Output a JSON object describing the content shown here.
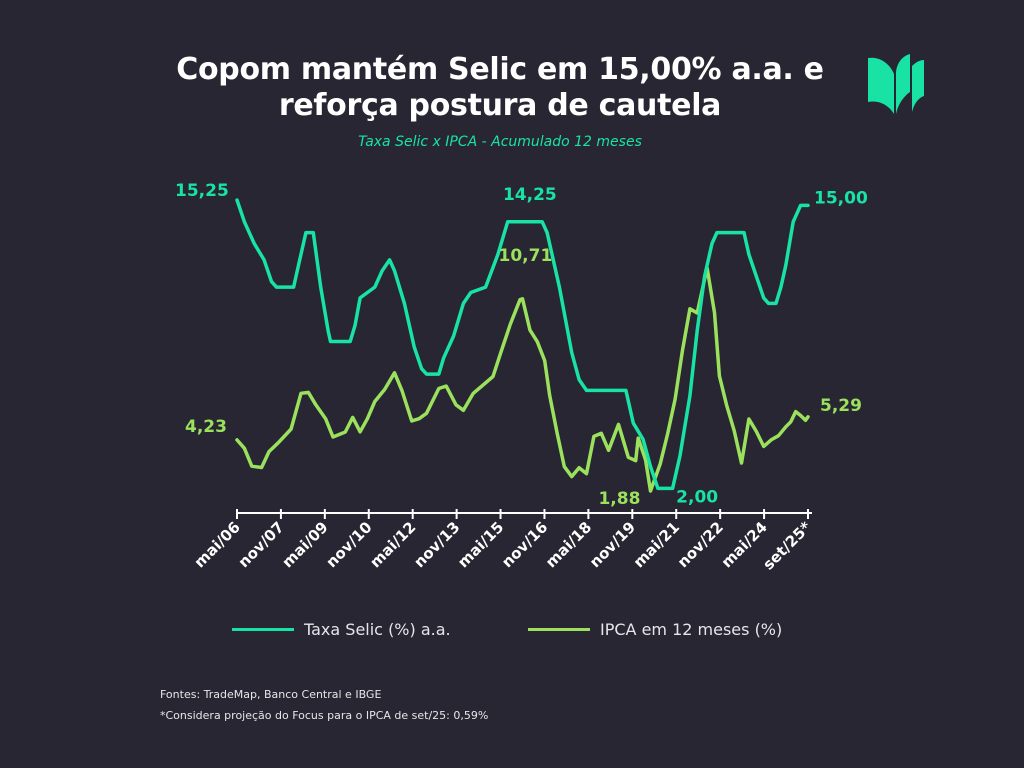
{
  "title_line1": "Copom mantém Selic em 15,00% a.a. e",
  "title_line2": "reforça postura de cautela",
  "subtitle": "Taxa Selic x IPCA - Acumulado 12 meses",
  "logo_icon": "fiscal-books-logo-icon",
  "colors": {
    "background": "#272632",
    "selic": "#19e3a4",
    "ipca": "#9be15d",
    "text": "#ffffff"
  },
  "legend": {
    "selic": "Taxa Selic (%) a.a.",
    "ipca": "IPCA em 12 meses (%)"
  },
  "sources": "Fontes: TradeMap, Banco Central e IBGE",
  "footnote": "*Considera projeção do Focus para o IPCA de set/25: 0,59%",
  "chart_data": {
    "type": "line",
    "x_ticks": [
      "mai/06",
      "nov/07",
      "mai/09",
      "nov/10",
      "mai/12",
      "nov/13",
      "mai/15",
      "nov/16",
      "mai/18",
      "nov/19",
      "mai/21",
      "nov/22",
      "mai/24",
      "set/25*"
    ],
    "x_range": [
      "2006-05",
      "2025-09"
    ],
    "y_range": [
      1.5,
      16.5
    ],
    "grid": false,
    "legend_position": "bottom",
    "series": [
      {
        "name": "Taxa Selic (%) a.a.",
        "color": "#19e3a4",
        "points": [
          [
            "2006-05",
            15.25
          ],
          [
            "2006-08",
            14.25
          ],
          [
            "2006-12",
            13.25
          ],
          [
            "2007-04",
            12.5
          ],
          [
            "2007-07",
            11.5
          ],
          [
            "2007-09",
            11.25
          ],
          [
            "2008-04",
            11.25
          ],
          [
            "2008-06",
            12.25
          ],
          [
            "2008-09",
            13.75
          ],
          [
            "2008-12",
            13.75
          ],
          [
            "2009-03",
            11.25
          ],
          [
            "2009-06",
            9.25
          ],
          [
            "2009-07",
            8.75
          ],
          [
            "2010-03",
            8.75
          ],
          [
            "2010-05",
            9.5
          ],
          [
            "2010-07",
            10.75
          ],
          [
            "2011-01",
            11.25
          ],
          [
            "2011-04",
            12.0
          ],
          [
            "2011-07",
            12.5
          ],
          [
            "2011-09",
            12.0
          ],
          [
            "2012-01",
            10.5
          ],
          [
            "2012-05",
            8.5
          ],
          [
            "2012-08",
            7.5
          ],
          [
            "2012-10",
            7.25
          ],
          [
            "2013-03",
            7.25
          ],
          [
            "2013-05",
            8.0
          ],
          [
            "2013-09",
            9.0
          ],
          [
            "2014-01",
            10.5
          ],
          [
            "2014-04",
            11.0
          ],
          [
            "2014-10",
            11.25
          ],
          [
            "2015-03",
            12.75
          ],
          [
            "2015-07",
            14.25
          ],
          [
            "2016-09",
            14.25
          ],
          [
            "2016-11",
            13.75
          ],
          [
            "2017-04",
            11.25
          ],
          [
            "2017-09",
            8.25
          ],
          [
            "2017-12",
            7.0
          ],
          [
            "2018-03",
            6.5
          ],
          [
            "2019-07",
            6.5
          ],
          [
            "2019-10",
            5.0
          ],
          [
            "2020-02",
            4.25
          ],
          [
            "2020-05",
            3.0
          ],
          [
            "2020-08",
            2.0
          ],
          [
            "2021-02",
            2.0
          ],
          [
            "2021-05",
            3.5
          ],
          [
            "2021-09",
            6.25
          ],
          [
            "2021-12",
            9.25
          ],
          [
            "2022-03",
            11.75
          ],
          [
            "2022-06",
            13.25
          ],
          [
            "2022-08",
            13.75
          ],
          [
            "2023-07",
            13.75
          ],
          [
            "2023-09",
            12.75
          ],
          [
            "2023-12",
            11.75
          ],
          [
            "2024-03",
            10.75
          ],
          [
            "2024-05",
            10.5
          ],
          [
            "2024-08",
            10.5
          ],
          [
            "2024-10",
            11.25
          ],
          [
            "2024-12",
            12.25
          ],
          [
            "2025-03",
            14.25
          ],
          [
            "2025-06",
            15.0
          ],
          [
            "2025-09",
            15.0
          ]
        ]
      },
      {
        "name": "IPCA em 12 meses (%)",
        "color": "#9be15d",
        "points": [
          [
            "2006-05",
            4.23
          ],
          [
            "2006-08",
            3.84
          ],
          [
            "2006-11",
            3.02
          ],
          [
            "2007-03",
            2.96
          ],
          [
            "2007-06",
            3.69
          ],
          [
            "2007-10",
            4.12
          ],
          [
            "2008-03",
            4.73
          ],
          [
            "2008-07",
            6.37
          ],
          [
            "2008-10",
            6.41
          ],
          [
            "2009-01",
            5.84
          ],
          [
            "2009-05",
            5.2
          ],
          [
            "2009-08",
            4.36
          ],
          [
            "2010-01",
            4.59
          ],
          [
            "2010-04",
            5.26
          ],
          [
            "2010-07",
            4.6
          ],
          [
            "2010-10",
            5.2
          ],
          [
            "2011-01",
            5.99
          ],
          [
            "2011-05",
            6.55
          ],
          [
            "2011-09",
            7.31
          ],
          [
            "2011-12",
            6.5
          ],
          [
            "2012-04",
            5.1
          ],
          [
            "2012-07",
            5.2
          ],
          [
            "2012-10",
            5.45
          ],
          [
            "2013-03",
            6.59
          ],
          [
            "2013-06",
            6.7
          ],
          [
            "2013-10",
            5.84
          ],
          [
            "2014-01",
            5.59
          ],
          [
            "2014-05",
            6.37
          ],
          [
            "2014-09",
            6.75
          ],
          [
            "2015-01",
            7.14
          ],
          [
            "2015-04",
            8.17
          ],
          [
            "2015-08",
            9.53
          ],
          [
            "2015-12",
            10.67
          ],
          [
            "2016-01",
            10.71
          ],
          [
            "2016-04",
            9.28
          ],
          [
            "2016-07",
            8.74
          ],
          [
            "2016-10",
            7.87
          ],
          [
            "2016-12",
            6.29
          ],
          [
            "2017-03",
            4.57
          ],
          [
            "2017-06",
            3.0
          ],
          [
            "2017-09",
            2.54
          ],
          [
            "2017-12",
            2.95
          ],
          [
            "2018-03",
            2.68
          ],
          [
            "2018-06",
            4.39
          ],
          [
            "2018-09",
            4.53
          ],
          [
            "2018-12",
            3.75
          ],
          [
            "2019-04",
            4.94
          ],
          [
            "2019-08",
            3.43
          ],
          [
            "2019-11",
            3.27
          ],
          [
            "2019-12",
            4.31
          ],
          [
            "2020-03",
            3.3
          ],
          [
            "2020-05",
            1.88
          ],
          [
            "2020-09",
            3.14
          ],
          [
            "2020-12",
            4.52
          ],
          [
            "2021-03",
            6.1
          ],
          [
            "2021-06",
            8.35
          ],
          [
            "2021-09",
            10.25
          ],
          [
            "2021-12",
            10.06
          ],
          [
            "2022-04",
            12.13
          ],
          [
            "2022-07",
            10.07
          ],
          [
            "2022-09",
            7.17
          ],
          [
            "2022-12",
            5.79
          ],
          [
            "2023-03",
            4.65
          ],
          [
            "2023-06",
            3.16
          ],
          [
            "2023-09",
            5.19
          ],
          [
            "2023-12",
            4.62
          ],
          [
            "2024-03",
            3.93
          ],
          [
            "2024-06",
            4.23
          ],
          [
            "2024-09",
            4.42
          ],
          [
            "2024-12",
            4.83
          ],
          [
            "2025-02",
            5.06
          ],
          [
            "2025-04",
            5.53
          ],
          [
            "2025-06",
            5.35
          ],
          [
            "2025-08",
            5.13
          ],
          [
            "2025-09",
            5.29
          ]
        ]
      }
    ],
    "annotations": [
      {
        "series": "Taxa Selic (%) a.a.",
        "date": "2006-05",
        "value": 15.25,
        "label": "15,25"
      },
      {
        "series": "Taxa Selic (%) a.a.",
        "date": "2016-02",
        "value": 14.25,
        "label": "14,25"
      },
      {
        "series": "Taxa Selic (%) a.a.",
        "date": "2021-01",
        "value": 2.0,
        "label": "2,00"
      },
      {
        "series": "Taxa Selic (%) a.a.",
        "date": "2025-09",
        "value": 15.0,
        "label": "15,00"
      },
      {
        "series": "IPCA em 12 meses (%)",
        "date": "2006-05",
        "value": 4.23,
        "label": "4,23"
      },
      {
        "series": "IPCA em 12 meses (%)",
        "date": "2016-01",
        "value": 10.71,
        "label": "10,71"
      },
      {
        "series": "IPCA em 12 meses (%)",
        "date": "2020-05",
        "value": 1.88,
        "label": "1,88"
      },
      {
        "series": "IPCA em 12 meses (%)",
        "date": "2025-09",
        "value": 5.29,
        "label": "5,29"
      }
    ]
  }
}
